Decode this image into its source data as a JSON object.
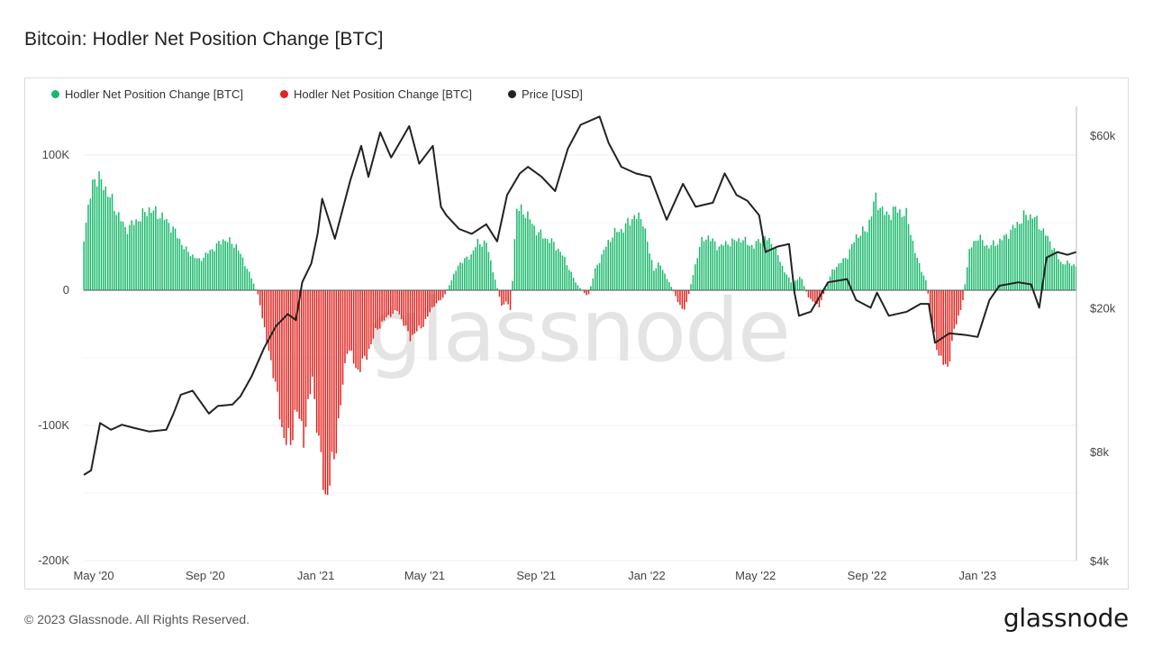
{
  "title": "Bitcoin: Hodler Net Position Change [BTC]",
  "footer": {
    "copyright": "© 2023 Glassnode. All Rights Reserved.",
    "logo": "glassnode"
  },
  "watermark": "glassnode",
  "colors": {
    "positive": "#18b86a",
    "negative": "#e0241f",
    "price": "#222222",
    "grid": "#eeeeee",
    "watermark": "#e4e4e4"
  },
  "legend": [
    {
      "label": "Hodler Net Position Change [BTC]",
      "color": "#18b86a"
    },
    {
      "label": "Hodler Net Position Change [BTC]",
      "color": "#e0241f"
    },
    {
      "label": "Price [USD]",
      "color": "#222222"
    }
  ],
  "chart_data": {
    "type": "bar",
    "x_axis": {
      "type": "date",
      "tick_labels": [
        "May '20",
        "Sep '20",
        "Jan '21",
        "May '21",
        "Sep '21",
        "Jan '22",
        "May '22",
        "Sep '22",
        "Jan '23"
      ],
      "tick_dates": [
        "2020-05-01",
        "2020-09-01",
        "2021-01-01",
        "2021-05-01",
        "2021-09-01",
        "2022-01-01",
        "2022-05-01",
        "2022-09-01",
        "2023-01-01"
      ],
      "range": [
        "2020-04-20",
        "2023-04-20"
      ]
    },
    "y_left": {
      "label": "",
      "range": [
        -200000,
        136000
      ],
      "ticks": [
        100000,
        0,
        -100000,
        -200000
      ],
      "tick_labels": [
        "100K",
        "0",
        "-100K",
        "-200K"
      ]
    },
    "y_right": {
      "label": "",
      "scale": "log",
      "range": [
        4000,
        72000
      ],
      "ticks": [
        60000,
        20000,
        8000,
        4000
      ],
      "tick_labels": [
        "$60k",
        "$20k",
        "$8k",
        "$4k"
      ]
    },
    "series": [
      {
        "name": "Hodler Net Position Change [BTC]",
        "kind": "bars",
        "x": [
          "2020-04-20",
          "2020-05-01",
          "2020-05-12",
          "2020-05-25",
          "2020-06-05",
          "2020-06-18",
          "2020-07-01",
          "2020-07-15",
          "2020-07-28",
          "2020-08-10",
          "2020-08-25",
          "2020-09-08",
          "2020-09-22",
          "2020-10-05",
          "2020-10-20",
          "2020-10-30",
          "2020-11-08",
          "2020-11-15",
          "2020-11-25",
          "2020-12-04",
          "2020-12-10",
          "2020-12-18",
          "2020-12-28",
          "2021-01-06",
          "2021-01-12",
          "2021-01-22",
          "2021-02-05",
          "2021-02-15",
          "2021-02-25",
          "2021-03-08",
          "2021-03-20",
          "2021-04-01",
          "2021-04-15",
          "2021-04-30",
          "2021-05-10",
          "2021-05-22",
          "2021-06-08",
          "2021-06-20",
          "2021-06-28",
          "2021-07-08",
          "2021-07-15",
          "2021-07-25",
          "2021-07-31",
          "2021-08-04",
          "2021-08-10",
          "2021-08-20",
          "2021-08-31",
          "2021-09-08",
          "2021-09-20",
          "2021-10-01",
          "2021-10-15",
          "2021-10-28",
          "2021-11-05",
          "2021-11-15",
          "2021-11-25",
          "2021-12-05",
          "2021-12-18",
          "2021-12-28",
          "2022-01-03",
          "2022-01-09",
          "2022-01-15",
          "2022-02-01",
          "2022-02-05",
          "2022-02-12",
          "2022-03-01",
          "2022-03-10",
          "2022-03-20",
          "2022-04-01",
          "2022-04-15",
          "2022-04-29",
          "2022-05-08",
          "2022-05-20",
          "2022-06-01",
          "2022-06-10",
          "2022-06-20",
          "2022-06-28",
          "2022-07-10",
          "2022-07-25",
          "2022-08-10",
          "2022-08-20",
          "2022-09-01",
          "2022-09-10",
          "2022-09-22",
          "2022-10-03",
          "2022-10-15",
          "2022-10-25",
          "2022-11-06",
          "2022-11-10",
          "2022-11-18",
          "2022-11-28",
          "2022-12-06",
          "2022-12-15",
          "2022-12-23",
          "2023-01-01",
          "2023-01-12",
          "2023-01-22",
          "2023-02-01",
          "2023-02-12",
          "2023-02-22",
          "2023-03-03",
          "2023-03-10",
          "2023-03-18",
          "2023-03-25",
          "2023-04-03",
          "2023-04-12",
          "2023-04-20"
        ],
        "values": [
          40000,
          85000,
          78000,
          60000,
          45000,
          52000,
          60000,
          55000,
          45000,
          30000,
          22000,
          30000,
          38000,
          33000,
          12000,
          -5000,
          -40000,
          -60000,
          -105000,
          -115000,
          -85000,
          -110000,
          -65000,
          -125000,
          -155000,
          -120000,
          -40000,
          -60000,
          -50000,
          -30000,
          -20000,
          -15000,
          -35000,
          -25000,
          -12000,
          -5000,
          20000,
          25000,
          35000,
          35000,
          15000,
          -12000,
          -8000,
          -15000,
          60000,
          58000,
          45000,
          40000,
          35000,
          25000,
          5000,
          -5000,
          15000,
          30000,
          42000,
          45000,
          55000,
          52000,
          30000,
          15000,
          20000,
          -3000,
          -10000,
          -15000,
          35000,
          40000,
          32000,
          35000,
          38000,
          32000,
          40000,
          35000,
          15000,
          5000,
          10000,
          -5000,
          -12000,
          15000,
          25000,
          40000,
          45000,
          68000,
          55000,
          60000,
          55000,
          25000,
          5000,
          -20000,
          -45000,
          -60000,
          -30000,
          -10000,
          30000,
          40000,
          32000,
          35000,
          40000,
          48000,
          55000,
          55000,
          48000,
          40000,
          32000,
          20000,
          20000,
          18000
        ]
      },
      {
        "name": "Price [USD]",
        "kind": "line",
        "x": [
          "2020-04-20",
          "2020-04-28",
          "2020-05-08",
          "2020-05-20",
          "2020-06-01",
          "2020-06-15",
          "2020-07-01",
          "2020-07-20",
          "2020-07-28",
          "2020-08-05",
          "2020-08-18",
          "2020-09-05",
          "2020-09-15",
          "2020-10-01",
          "2020-10-10",
          "2020-10-22",
          "2020-11-05",
          "2020-11-18",
          "2020-12-01",
          "2020-12-10",
          "2020-12-17",
          "2020-12-27",
          "2021-01-03",
          "2021-01-08",
          "2021-01-22",
          "2021-02-08",
          "2021-02-20",
          "2021-02-28",
          "2021-03-13",
          "2021-03-25",
          "2021-04-05",
          "2021-04-14",
          "2021-04-25",
          "2021-05-10",
          "2021-05-19",
          "2021-05-25",
          "2021-06-08",
          "2021-06-22",
          "2021-07-08",
          "2021-07-20",
          "2021-07-31",
          "2021-08-14",
          "2021-08-23",
          "2021-09-07",
          "2021-09-22",
          "2021-10-06",
          "2021-10-20",
          "2021-11-10",
          "2021-11-20",
          "2021-12-04",
          "2021-12-20",
          "2022-01-05",
          "2022-01-23",
          "2022-02-10",
          "2022-02-24",
          "2022-03-15",
          "2022-03-28",
          "2022-04-10",
          "2022-04-22",
          "2022-05-05",
          "2022-05-12",
          "2022-05-25",
          "2022-06-07",
          "2022-06-13",
          "2022-06-18",
          "2022-07-01",
          "2022-07-20",
          "2022-08-10",
          "2022-08-20",
          "2022-09-05",
          "2022-09-12",
          "2022-09-25",
          "2022-10-15",
          "2022-10-30",
          "2022-11-08",
          "2022-11-15",
          "2022-12-01",
          "2022-12-20",
          "2023-01-01",
          "2023-01-14",
          "2023-01-25",
          "2023-02-15",
          "2023-03-01",
          "2023-03-10",
          "2023-03-18",
          "2023-03-30",
          "2023-04-10",
          "2023-04-20"
        ],
        "values": [
          6900,
          7100,
          9600,
          9200,
          9500,
          9300,
          9100,
          9200,
          10200,
          11500,
          11800,
          10200,
          10700,
          10800,
          11400,
          12900,
          15500,
          17800,
          19200,
          18500,
          23500,
          26500,
          32000,
          40000,
          31000,
          45000,
          56000,
          46000,
          61000,
          52000,
          58000,
          63500,
          50000,
          56000,
          38000,
          36000,
          33000,
          32000,
          34000,
          30500,
          41000,
          47000,
          49000,
          46000,
          42000,
          55000,
          64000,
          67500,
          57000,
          49000,
          47000,
          46000,
          35000,
          44000,
          38000,
          39000,
          47000,
          41000,
          39500,
          36000,
          28500,
          29500,
          30000,
          22000,
          19000,
          19500,
          23500,
          24000,
          21000,
          20000,
          22000,
          19000,
          19500,
          20500,
          20500,
          16000,
          17000,
          16800,
          16600,
          21000,
          23000,
          23500,
          23200,
          20000,
          27500,
          28500,
          28000,
          28500
        ]
      }
    ]
  }
}
